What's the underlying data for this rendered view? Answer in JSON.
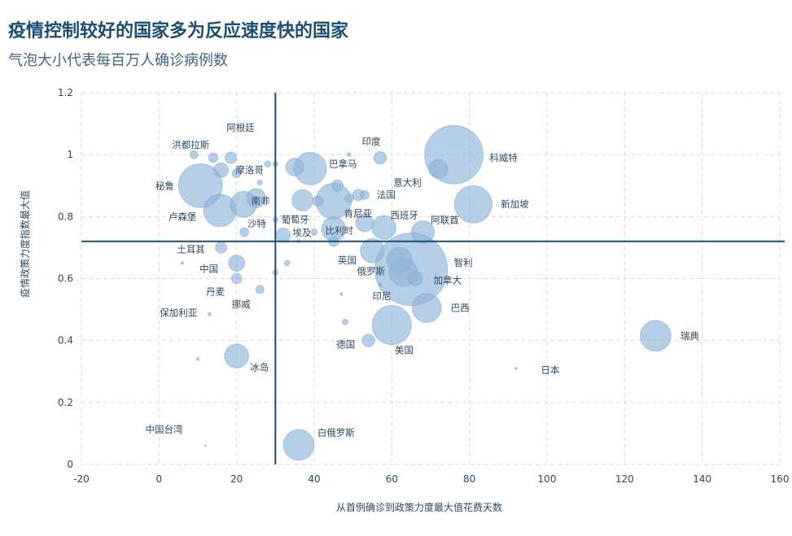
{
  "chart_data": {
    "type": "scatter",
    "title": "疫情控制较好的国家多为反应速度快的国家",
    "subtitle": "气泡大小代表每百万人确诊病例数",
    "xlabel": "从首例确诊到政策力度最大值花费天数",
    "ylabel": "疫情政策力度指数最大值",
    "xlim": [
      -20,
      160
    ],
    "ylim": [
      0,
      1.2
    ],
    "xticks": [
      "-20",
      "0",
      "20",
      "40",
      "60",
      "80",
      "100",
      "120",
      "140",
      "160"
    ],
    "yticks": [
      "0",
      "0.2",
      "0.4",
      "0.6",
      "0.8",
      "1",
      "1.2"
    ],
    "grid": true,
    "reference_lines": {
      "x": 30,
      "y": 0.72
    },
    "colors": {
      "bubble": "#8fb4d8",
      "line": "#1b4f72",
      "title": "#1b4f72",
      "label": "#2c4a63"
    },
    "points": [
      {
        "name": "阿根廷",
        "x": 18.5,
        "y": 0.99,
        "size": 5
      },
      {
        "name": "洪都拉斯",
        "x": 9,
        "y": 1.0,
        "size": 2.5
      },
      {
        "name": "摩洛哥",
        "x": 16,
        "y": 0.95,
        "size": 8
      },
      {
        "name": "秘鲁",
        "x": 10.7,
        "y": 0.9,
        "size": 73
      },
      {
        "name": "卢森堡",
        "x": 15.7,
        "y": 0.82,
        "size": 40
      },
      {
        "name": "南非",
        "x": 21.8,
        "y": 0.84,
        "size": 26
      },
      {
        "name": "沙特",
        "x": 30,
        "y": 0.79,
        "size": 1
      },
      {
        "name": "葡萄牙",
        "x": 37,
        "y": 0.853,
        "size": 17
      },
      {
        "name": "埃及",
        "x": 32,
        "y": 0.74,
        "size": 8
      },
      {
        "name": "比利时",
        "x": 45,
        "y": 0.76,
        "size": 22
      },
      {
        "name": "肯尼亚",
        "x": 45,
        "y": 0.85,
        "size": 48
      },
      {
        "name": "法国",
        "x": 51.4,
        "y": 0.87,
        "size": 5
      },
      {
        "name": "印度",
        "x": 57,
        "y": 0.99,
        "size": 6
      },
      {
        "name": "巴拿马",
        "x": 39,
        "y": 0.955,
        "size": 40
      },
      {
        "name": "意大利",
        "x": 72,
        "y": 0.955,
        "size": 14
      },
      {
        "name": "科威特",
        "x": 76,
        "y": 1.0,
        "size": 130
      },
      {
        "name": "新加坡",
        "x": 81,
        "y": 0.84,
        "size": 53
      },
      {
        "name": "西班牙",
        "x": 58,
        "y": 0.765,
        "size": 22
      },
      {
        "name": "阿联酋",
        "x": 68,
        "y": 0.75,
        "size": 20
      },
      {
        "name": "英国",
        "x": 55,
        "y": 0.69,
        "size": 22
      },
      {
        "name": "俄罗斯",
        "x": 62,
        "y": 0.66,
        "size": 25
      },
      {
        "name": "智利",
        "x": 65,
        "y": 0.63,
        "size": 200
      },
      {
        "name": "加拿大",
        "x": 66,
        "y": 0.6,
        "size": 8
      },
      {
        "name": "印尼",
        "x": 57,
        "y": 0.58,
        "size": 0.5
      },
      {
        "name": "巴西",
        "x": 69,
        "y": 0.505,
        "size": 32
      },
      {
        "name": "德国",
        "x": 54,
        "y": 0.4,
        "size": 6
      },
      {
        "name": "美国",
        "x": 60,
        "y": 0.45,
        "size": 58
      },
      {
        "name": "瑞典",
        "x": 128,
        "y": 0.415,
        "size": 36
      },
      {
        "name": "日本",
        "x": 92,
        "y": 0.31,
        "size": 0.2
      },
      {
        "name": "土耳其",
        "x": 16,
        "y": 0.7,
        "size": 5
      },
      {
        "name": "中国",
        "x": 20,
        "y": 0.65,
        "size": 10
      },
      {
        "name": "丹麦",
        "x": 20,
        "y": 0.6,
        "size": 4
      },
      {
        "name": "挪威",
        "x": 26,
        "y": 0.565,
        "size": 2.5
      },
      {
        "name": "保加利亚",
        "x": 13,
        "y": 0.485,
        "size": 0.4
      },
      {
        "name": "冰岛",
        "x": 20,
        "y": 0.35,
        "size": 22
      },
      {
        "name": "中国台湾",
        "x": 12,
        "y": 0.06,
        "size": 0.1
      },
      {
        "name": "白俄罗斯",
        "x": 36,
        "y": 0.063,
        "size": 36
      }
    ],
    "unlabeled_points": [
      {
        "x": 14,
        "y": 0.99,
        "size": 3.5
      },
      {
        "x": 20,
        "y": 0.94,
        "size": 3
      },
      {
        "x": 25,
        "y": 0.86,
        "size": 14
      },
      {
        "x": 22,
        "y": 0.75,
        "size": 3
      },
      {
        "x": 30,
        "y": 0.97,
        "size": 1
      },
      {
        "x": 28,
        "y": 0.97,
        "size": 1.5
      },
      {
        "x": 26,
        "y": 0.91,
        "size": 1
      },
      {
        "x": 35,
        "y": 0.96,
        "size": 12
      },
      {
        "x": 41,
        "y": 0.85,
        "size": 4
      },
      {
        "x": 46,
        "y": 0.9,
        "size": 5
      },
      {
        "x": 49,
        "y": 0.86,
        "size": 3
      },
      {
        "x": 53,
        "y": 0.87,
        "size": 3
      },
      {
        "x": 45,
        "y": 0.72,
        "size": 4
      },
      {
        "x": 40,
        "y": 0.75,
        "size": 1.5
      },
      {
        "x": 33,
        "y": 0.65,
        "size": 1.2
      },
      {
        "x": 30,
        "y": 0.62,
        "size": 1
      },
      {
        "x": 48,
        "y": 0.46,
        "size": 1.2
      },
      {
        "x": 53,
        "y": 0.78,
        "size": 12
      },
      {
        "x": 63,
        "y": 0.62,
        "size": 30
      },
      {
        "x": 6,
        "y": 0.65,
        "size": 0.3
      },
      {
        "x": 10,
        "y": 0.34,
        "size": 0.3
      },
      {
        "x": 49,
        "y": 1.0,
        "size": 0.5
      },
      {
        "x": 47,
        "y": 0.55,
        "size": 0.3
      },
      {
        "x": 36,
        "y": 0.72,
        "size": 0.4
      }
    ]
  }
}
